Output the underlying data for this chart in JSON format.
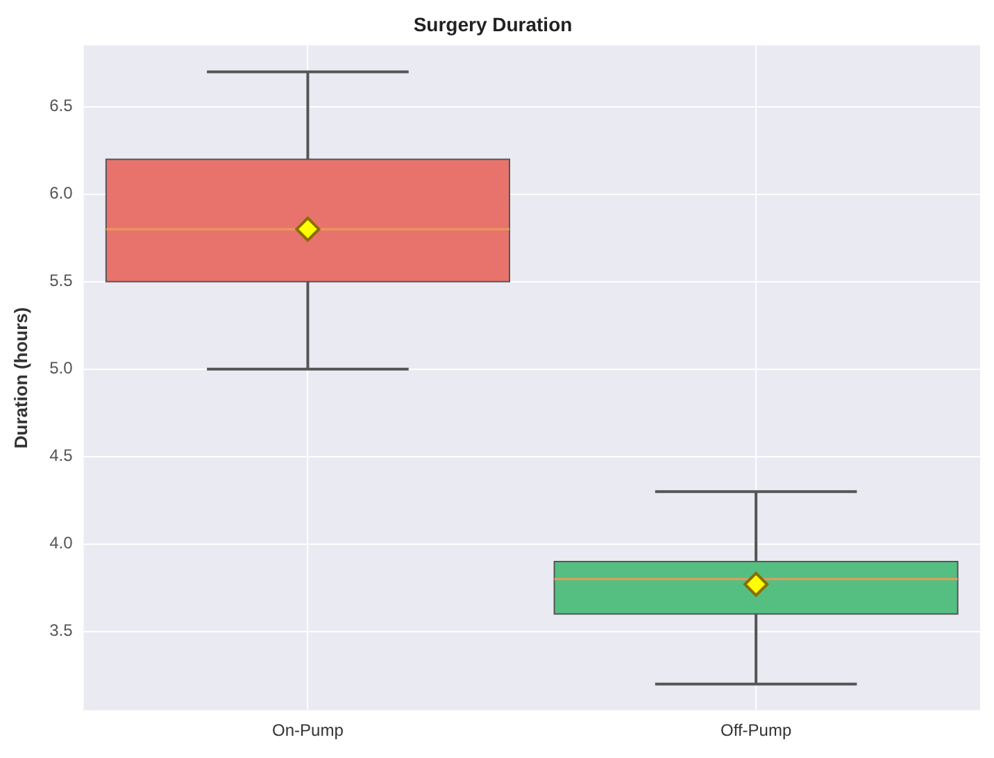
{
  "chart_data": {
    "type": "box",
    "title": "Surgery Duration",
    "ylabel": "Duration (hours)",
    "categories": [
      "On-Pump",
      "Off-Pump"
    ],
    "colors": [
      "#e8736c",
      "#55bf82"
    ],
    "boxes": [
      {
        "low": 5.0,
        "q1": 5.5,
        "median": 5.8,
        "q3": 6.2,
        "high": 6.7,
        "mean": 5.8
      },
      {
        "low": 3.2,
        "q1": 3.6,
        "median": 3.8,
        "q3": 3.9,
        "high": 4.3,
        "mean": 3.77
      }
    ],
    "ylim": [
      3.05,
      6.85
    ],
    "yticks": [
      3.5,
      {
        "value": 4,
        "label": "4.0"
      },
      4.5,
      {
        "value": 5,
        "label": "5.0"
      },
      5.5,
      {
        "value": 6,
        "label": "6.0"
      },
      6.5
    ],
    "grid": true,
    "marker": "diamond",
    "legend": false
  }
}
